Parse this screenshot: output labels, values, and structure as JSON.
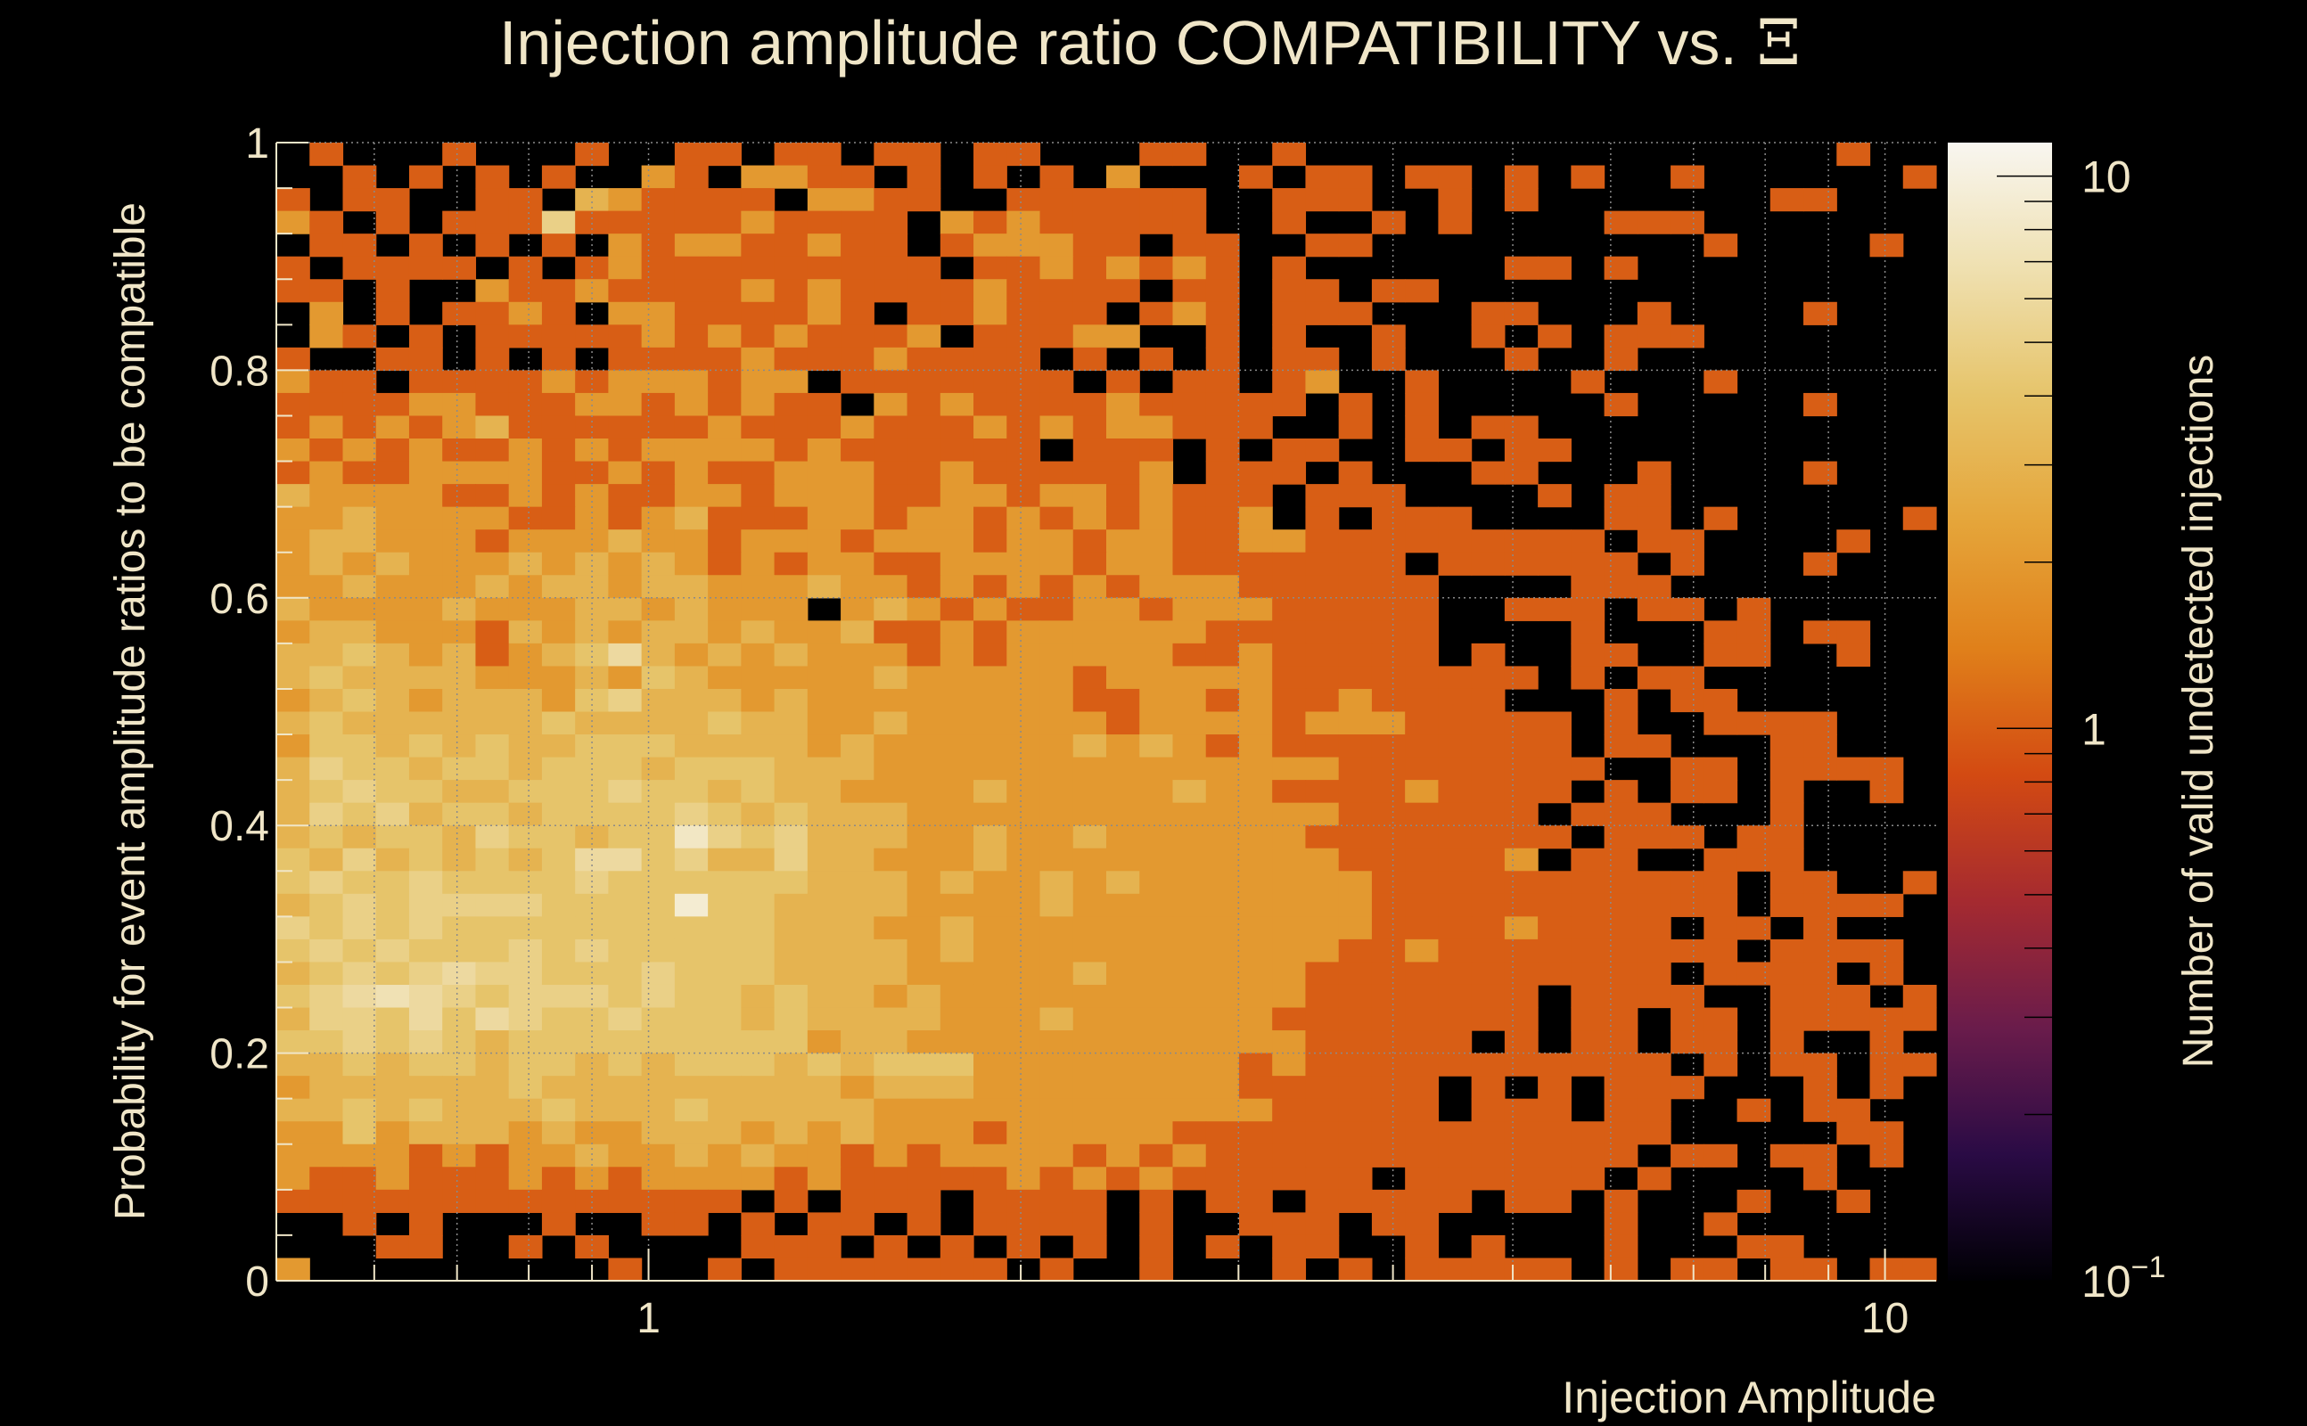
{
  "chart_data": {
    "type": "heatmap",
    "title": "Injection amplitude ratio COMPATIBILITY vs.",
    "title_symbol": "Ξ",
    "xlabel": "Injection Amplitude",
    "ylabel": "Probability for event amplitude ratios to be compatible",
    "colorbar_label": "Number of valid undetected injections",
    "x_scale": "log",
    "xlim": [
      0.5,
      11
    ],
    "ylim": [
      0,
      1
    ],
    "z_scale": "log",
    "zlim": [
      0.1,
      11.5
    ],
    "x_ticks": [
      {
        "value": 1,
        "label": "1"
      },
      {
        "value": 10,
        "label": "10"
      }
    ],
    "y_ticks": [
      {
        "value": 0,
        "label": "0"
      },
      {
        "value": 0.2,
        "label": "0.2"
      },
      {
        "value": 0.4,
        "label": "0.4"
      },
      {
        "value": 0.6,
        "label": "0.6"
      },
      {
        "value": 0.8,
        "label": "0.8"
      },
      {
        "value": 1,
        "label": "1"
      }
    ],
    "z_ticks": [
      {
        "value": 10,
        "label": "10"
      },
      {
        "value": 1,
        "label": "1"
      },
      {
        "value": 0.1,
        "label": "10",
        "sup": "−1"
      }
    ],
    "grid": true,
    "bins_x": 50,
    "bins_y": 50,
    "counts_rows_top_to_bottom": [
      "01000100010011011011011000110010000000000000000100",
      "00101010100210221101010102000101101101010010000001",
      "10110011032111102211001111110011100101000000011000",
      "21010111511111211110212111110010010100001110000000",
      "01101010102122112110122211011001100000000001000010",
      "10111101012111111111011212121010000001101000000000",
      "11010021121111212111121111011011011000000000000000",
      "02010112102211112101121110121011100011000100001000",
      "02101011111212121112011122001010010010101110000000",
      "10011010101111211121111010101011010001001000000000",
      "21101111212221220111111101011012001000010001000000",
      "11112211122121211021211112111110101000001000001000",
      "12121231111112111211121212211100101011000000000000",
      "21212112121222212111111011101011001101100000000000",
      "12112222112121122211211111201110100011000100001000",
      "32222112121122122211221221211101110000101100000000",
      "22322221121231112212212121211201011100001101000001",
      "23322212223221222122212212211221111111110110000100",
      "23232223232321212211222212211111110111111010001000",
      "22322232332332223221212121222111111000011100000000",
      "32222322233232220232121122122211111001110110100000",
      "23322213232332322311212222221111111000010001101100",
      "33432312346323232221212222211211111010011001100100",
      "34333322232432222232222212222211111111010110000000",
      "23432333245333232222222211221211211110001011000000",
      "34333333433334332232222221222212221111101001111000",
      "24434343344433332322222232321211111111101100011000",
      "35443443444344433322222222222222111111110011011110",
      "34544334445443433222232222232211112111101011010010",
      "35453443444454343332222222222222111111011100010000",
      "34344354434485453332232232222221111111101110110000",
      "43534343466453353322232222222222111112011001110000",
      "45445444454444443332322323222222211111111111011001",
      "34545555444494433332222322222222211111111111011110",
      "54545444444444433322322222222222211112111101101000",
      "45454445454444433332322222222222112111111111011110",
      "34545655444544433332222232222221111111111101111010",
      "45676545554544343323222222222221111111011110011101",
      "35546465445444343333222322222211111111011011011111",
      "44545434444444442332222222222221111101011011010010",
      "33434434434344434344422222222121111111111101011011",
      "23333334333333333233322222222111111010101110001010",
      "33434333433343333322222222222211111011101100101100",
      "22423332322333232322212222211111111111111100000110",
      "22221212232232322121222212121111111111111011011010",
      "21121112121222212111112121211111101111110100001000",
      "11111111111111010111011110101101111101101000100100",
      "00101000100110101101011110100111011000001001000000",
      "00011001010000111010101010101011001010001000110000",
      "20000000001001011111110100100010101111101011011011"
    ],
    "colormap": [
      "#000004",
      "#2a0b45",
      "#6a1c4b",
      "#a52a30",
      "#d34a12",
      "#e0801a",
      "#e5a53a",
      "#e6c46a",
      "#efe0b0",
      "#f8f6f0"
    ]
  }
}
